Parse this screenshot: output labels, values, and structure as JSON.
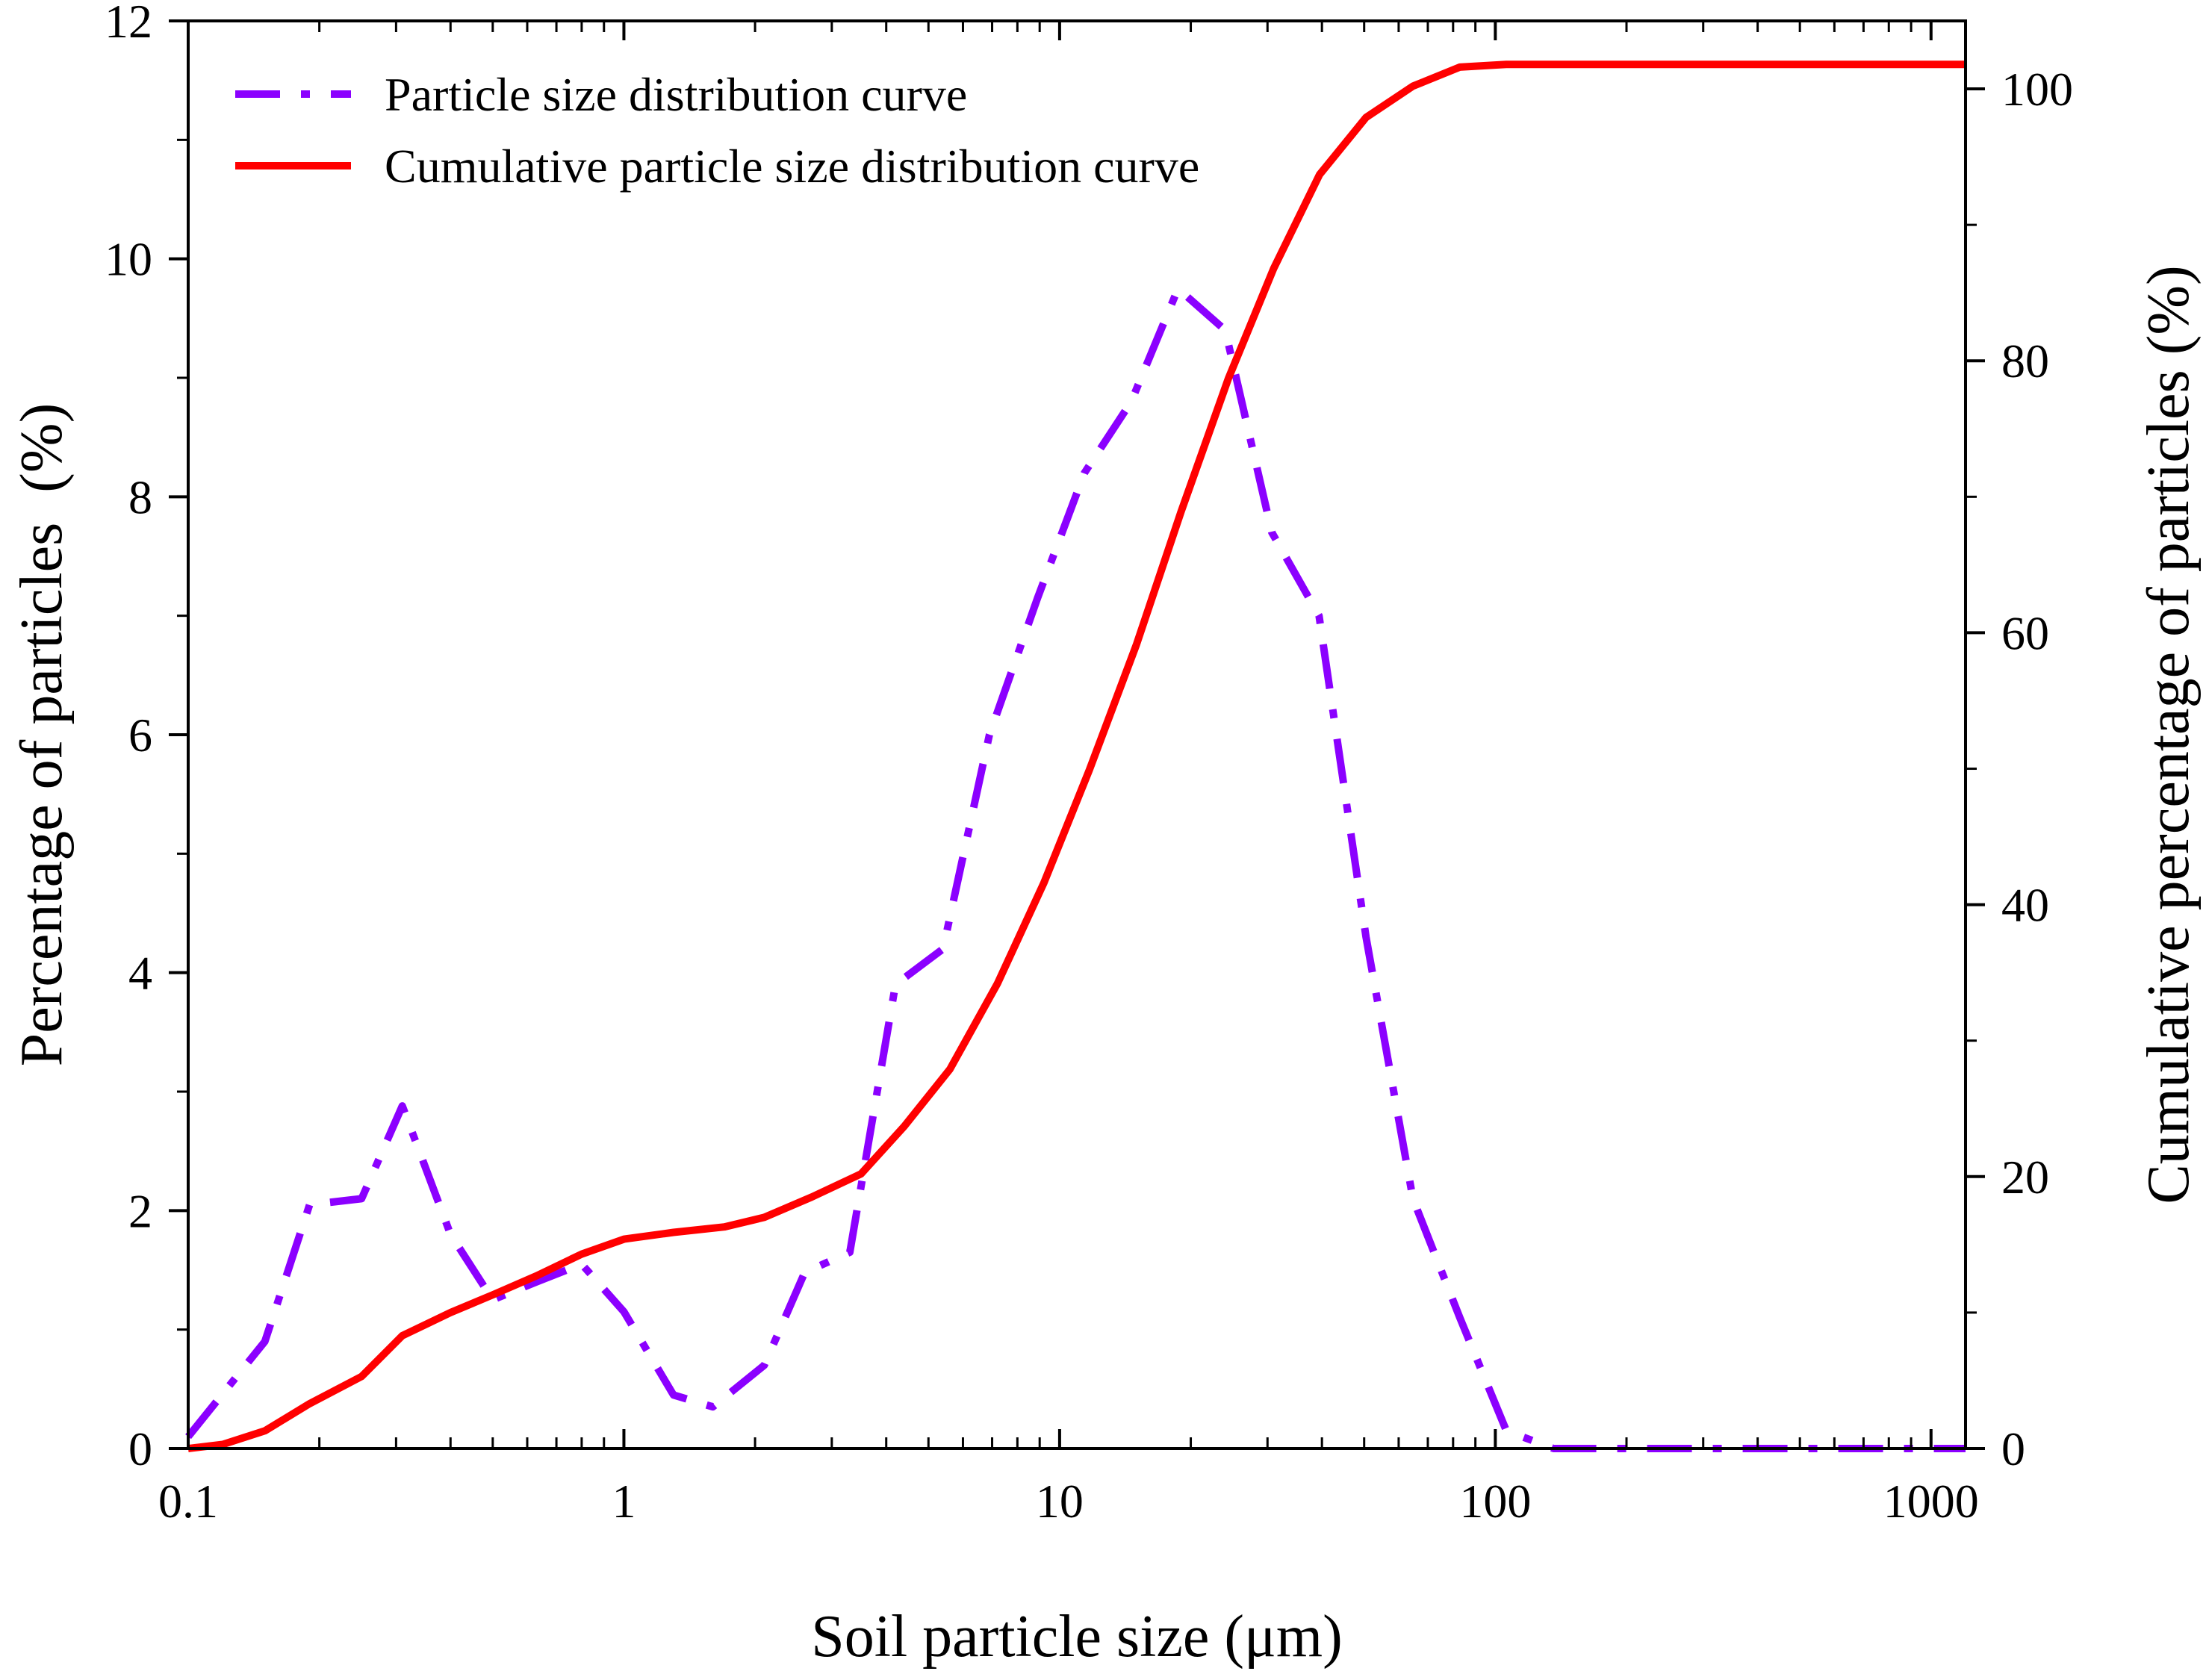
{
  "chart_data": {
    "type": "line",
    "xscale": "log",
    "xlim": [
      0.1,
      1200
    ],
    "xticks": [
      {
        "value": 0.1,
        "label": "0.1"
      },
      {
        "value": 1,
        "label": "1"
      },
      {
        "value": 10,
        "label": "10"
      },
      {
        "value": 100,
        "label": "100"
      },
      {
        "value": 1000,
        "label": "1000"
      }
    ],
    "xlabel": "Soil particle size (μm)",
    "y_left": {
      "label": "Percentage of particles  (%)",
      "lim": [
        0,
        12
      ],
      "ticks": [
        {
          "value": 0,
          "label": "0"
        },
        {
          "value": 2,
          "label": "2"
        },
        {
          "value": 4,
          "label": "4"
        },
        {
          "value": 6,
          "label": "6"
        },
        {
          "value": 8,
          "label": "8"
        },
        {
          "value": 10,
          "label": "10"
        },
        {
          "value": 12,
          "label": "12"
        }
      ],
      "minor_step": 1
    },
    "y_right": {
      "label": "Cumulative percentage of particles (%)",
      "lim": [
        0,
        105
      ],
      "ticks": [
        {
          "value": 0,
          "label": "0"
        },
        {
          "value": 20,
          "label": "20"
        },
        {
          "value": 40,
          "label": "40"
        },
        {
          "value": 60,
          "label": "60"
        },
        {
          "value": 80,
          "label": "80"
        },
        {
          "value": 100,
          "label": "100"
        }
      ],
      "minor_step": 10
    },
    "legend_position": "top-left",
    "series": [
      {
        "name": "Particle size distribution curve",
        "axis": "left",
        "style": "dash-dot",
        "color": "#8B00FF",
        "x": [
          0.1,
          0.15,
          0.19,
          0.25,
          0.31,
          0.4,
          0.5,
          0.63,
          0.8,
          1.0,
          1.3,
          1.6,
          2.1,
          2.6,
          3.3,
          4.2,
          5.4,
          6.9,
          8.9,
          11.4,
          14.6,
          18.7,
          24.0,
          30.7,
          39.4,
          50.5,
          64.7,
          82.9,
          106,
          136,
          174,
          224,
          287,
          368,
          471,
          604,
          774,
          992,
          1200
        ],
        "y": [
          0.1,
          0.9,
          2.05,
          2.1,
          2.88,
          1.8,
          1.25,
          1.4,
          1.55,
          1.15,
          0.45,
          0.35,
          0.7,
          1.48,
          1.65,
          3.9,
          4.2,
          6.0,
          7.15,
          8.2,
          8.8,
          9.75,
          9.4,
          7.7,
          7.0,
          4.3,
          2.1,
          1.1,
          0.15,
          0.0,
          0.0,
          0.0,
          0.0,
          0.0,
          0.0,
          0.0,
          0.0,
          0.0,
          0.0
        ]
      },
      {
        "name": "Cumulative particle size distribution curve",
        "axis": "right",
        "style": "solid",
        "color": "#FF0000",
        "x": [
          0.1,
          0.12,
          0.15,
          0.19,
          0.25,
          0.31,
          0.4,
          0.5,
          0.63,
          0.8,
          1.0,
          1.3,
          1.7,
          2.1,
          2.7,
          3.5,
          4.4,
          5.6,
          7.2,
          9.2,
          11.7,
          15.0,
          19.0,
          24.4,
          31.0,
          39.5,
          50.5,
          64.7,
          82.9,
          106,
          136,
          174,
          224,
          287,
          368,
          471,
          604,
          774,
          992,
          1200
        ],
        "y": [
          0,
          0.3,
          1.3,
          3.3,
          5.3,
          8.3,
          10.0,
          11.3,
          12.7,
          14.3,
          15.4,
          15.9,
          16.3,
          17.0,
          18.5,
          20.2,
          23.7,
          27.9,
          34.2,
          41.6,
          49.9,
          59.1,
          68.9,
          78.7,
          86.8,
          93.7,
          97.9,
          100.2,
          101.6,
          101.8,
          101.8,
          101.8,
          101.8,
          101.8,
          101.8,
          101.8,
          101.8,
          101.8,
          101.8,
          101.8
        ]
      }
    ]
  }
}
